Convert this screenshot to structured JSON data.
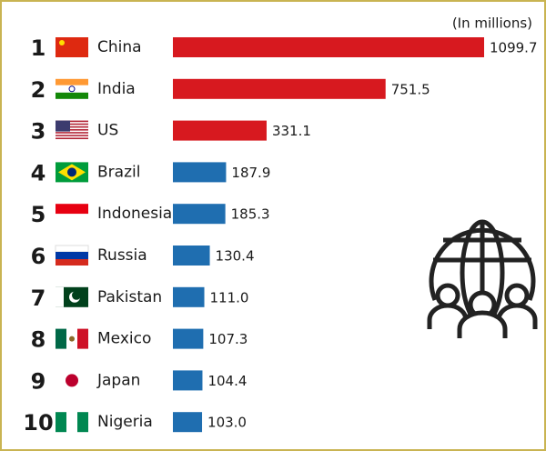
{
  "chart_data": {
    "type": "bar",
    "orientation": "horizontal",
    "unit_label": "(In millions)",
    "ranks": [
      "1",
      "2",
      "3",
      "4",
      "5",
      "6",
      "7",
      "8",
      "9",
      "10"
    ],
    "categories": [
      "China",
      "India",
      "US",
      "Brazil",
      "Indonesia",
      "Russia",
      "Pakistan",
      "Mexico",
      "Japan",
      "Nigeria"
    ],
    "values": [
      1099.7,
      751.5,
      331.1,
      187.9,
      185.3,
      130.4,
      111.0,
      107.3,
      104.4,
      103.0
    ],
    "value_labels": [
      "1099.7",
      "751.5",
      "331.1",
      "187.9",
      "185.3",
      "130.4",
      "111.0",
      "107.3",
      "104.4",
      "103.0"
    ],
    "colors": [
      "#d7191f",
      "#d7191f",
      "#d7191f",
      "#1f6eb0",
      "#1f6eb0",
      "#1f6eb0",
      "#1f6eb0",
      "#1f6eb0",
      "#1f6eb0",
      "#1f6eb0"
    ]
  }
}
